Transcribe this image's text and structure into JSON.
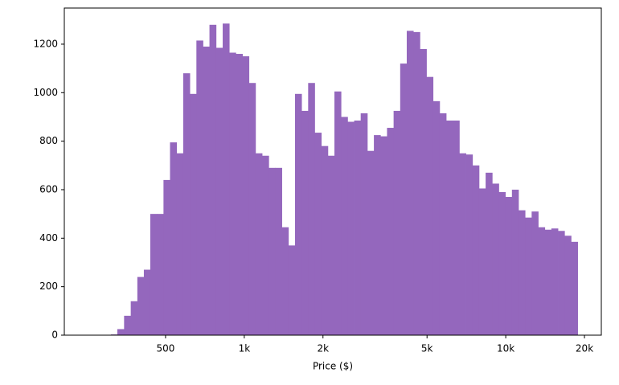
{
  "chart_data": {
    "type": "histogram",
    "x_label": "Price ($)",
    "color": "#9467bd",
    "xscale": "log",
    "bins": [
      309,
      327,
      347,
      368,
      390,
      413,
      437,
      463,
      491,
      520,
      551,
      584,
      619,
      656,
      695,
      736,
      780,
      827,
      876,
      928,
      984,
      1042,
      1104,
      1170,
      1240,
      1314,
      1392,
      1475,
      1563,
      1656,
      1755,
      1859,
      1970,
      2088,
      2212,
      2344,
      2484,
      2632,
      2788,
      2955,
      3131,
      3317,
      3515,
      3725,
      3947,
      4182,
      4431,
      4695,
      4975,
      5271,
      5586,
      5918,
      6271,
      6645,
      7041,
      7461,
      7905,
      8376,
      8876,
      9405,
      9965,
      10559,
      11188,
      11855,
      12562,
      13310,
      14103,
      14944,
      15835,
      16778,
      17778,
      18838
    ],
    "values": [
      3,
      25,
      80,
      140,
      240,
      270,
      500,
      500,
      640,
      795,
      750,
      1080,
      995,
      1215,
      1190,
      1280,
      1185,
      1285,
      1165,
      1160,
      1150,
      1040,
      750,
      740,
      690,
      690,
      445,
      370,
      995,
      925,
      1040,
      835,
      780,
      740,
      1005,
      900,
      880,
      885,
      915,
      760,
      825,
      820,
      855,
      925,
      1120,
      1255,
      1250,
      1180,
      1065,
      965,
      915,
      885,
      885,
      750,
      745,
      700,
      605,
      670,
      625,
      590,
      570,
      600,
      515,
      485,
      510,
      445,
      435,
      440,
      430,
      410,
      385
    ],
    "xlim": [
      205,
      23200
    ],
    "ylim": [
      0,
      1349
    ],
    "xticks": [
      500,
      {
        "value": 1000,
        "label": "1k"
      },
      {
        "value": 2000,
        "label": "2k"
      },
      {
        "value": 5000,
        "label": "5k"
      },
      {
        "value": 10000,
        "label": "10k"
      },
      {
        "value": 20000,
        "label": "20k"
      }
    ],
    "yticks": [
      0,
      200,
      400,
      600,
      800,
      1000,
      1200
    ]
  }
}
